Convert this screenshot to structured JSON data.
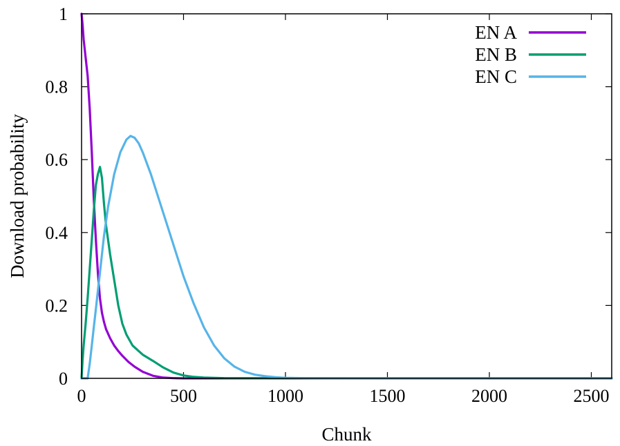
{
  "chart_data": {
    "type": "line",
    "title": "",
    "xlabel": "Chunk",
    "ylabel": "Download probability",
    "xlim": [
      0,
      2600
    ],
    "ylim": [
      0,
      1
    ],
    "xticks": [
      0,
      500,
      1000,
      1500,
      2000,
      2500
    ],
    "yticks": [
      0,
      0.2,
      0.4,
      0.6,
      0.8,
      1
    ],
    "ytick_labels": [
      "0",
      "0.2",
      "0.4",
      "0.6",
      "0.8",
      "1"
    ],
    "grid": false,
    "legend_position": "top-right",
    "series": [
      {
        "name": "EN A",
        "color": "#9400d3",
        "x": [
          0,
          5,
          10,
          20,
          30,
          40,
          50,
          60,
          70,
          80,
          90,
          100,
          110,
          120,
          140,
          160,
          180,
          200,
          230,
          260,
          300,
          350,
          400,
          450,
          500,
          600,
          800,
          1000,
          1500,
          2000,
          2600
        ],
        "y": [
          1.0,
          0.97,
          0.93,
          0.88,
          0.83,
          0.74,
          0.62,
          0.49,
          0.38,
          0.29,
          0.22,
          0.18,
          0.155,
          0.135,
          0.11,
          0.09,
          0.075,
          0.062,
          0.045,
          0.032,
          0.018,
          0.007,
          0.002,
          0.0005,
          0,
          0,
          0,
          0,
          0,
          0,
          0
        ]
      },
      {
        "name": "EN B",
        "color": "#009e73",
        "x": [
          0,
          5,
          10,
          20,
          30,
          40,
          50,
          60,
          70,
          80,
          90,
          100,
          110,
          120,
          140,
          160,
          180,
          200,
          220,
          250,
          280,
          300,
          350,
          400,
          450,
          500,
          550,
          600,
          700,
          1000,
          1500,
          2000,
          2600
        ],
        "y": [
          0,
          0.05,
          0.09,
          0.15,
          0.22,
          0.3,
          0.38,
          0.46,
          0.53,
          0.56,
          0.58,
          0.55,
          0.48,
          0.42,
          0.34,
          0.27,
          0.2,
          0.15,
          0.12,
          0.09,
          0.075,
          0.065,
          0.048,
          0.03,
          0.016,
          0.008,
          0.004,
          0.002,
          0.0005,
          0,
          0,
          0,
          0
        ]
      },
      {
        "name": "EN C",
        "color": "#56b4e9",
        "x": [
          0,
          30,
          40,
          50,
          60,
          70,
          80,
          90,
          100,
          110,
          130,
          160,
          190,
          220,
          240,
          260,
          280,
          300,
          340,
          380,
          420,
          460,
          500,
          550,
          600,
          650,
          700,
          750,
          800,
          850,
          900,
          950,
          1000,
          1100,
          1200,
          1500,
          2000,
          2600
        ],
        "y": [
          0,
          0,
          0.04,
          0.09,
          0.14,
          0.19,
          0.24,
          0.29,
          0.34,
          0.39,
          0.47,
          0.56,
          0.62,
          0.655,
          0.665,
          0.66,
          0.645,
          0.62,
          0.56,
          0.49,
          0.42,
          0.35,
          0.28,
          0.205,
          0.14,
          0.09,
          0.055,
          0.032,
          0.018,
          0.01,
          0.006,
          0.003,
          0.0015,
          0.0005,
          0.0002,
          0,
          0,
          0
        ]
      }
    ]
  }
}
